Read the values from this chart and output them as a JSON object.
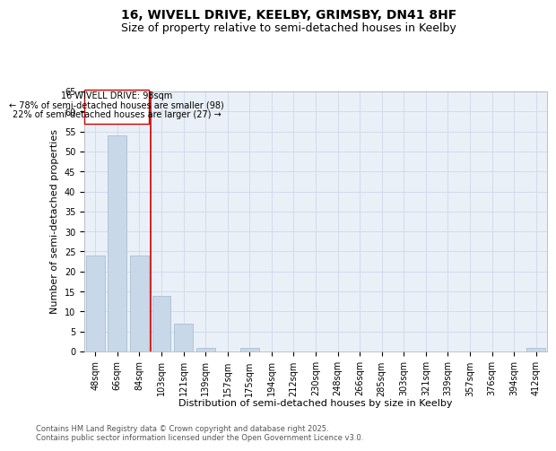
{
  "title_line1": "16, WIVELL DRIVE, KEELBY, GRIMSBY, DN41 8HF",
  "title_line2": "Size of property relative to semi-detached houses in Keelby",
  "xlabel": "Distribution of semi-detached houses by size in Keelby",
  "ylabel": "Number of semi-detached properties",
  "categories": [
    "48sqm",
    "66sqm",
    "84sqm",
    "103sqm",
    "121sqm",
    "139sqm",
    "157sqm",
    "175sqm",
    "194sqm",
    "212sqm",
    "230sqm",
    "248sqm",
    "266sqm",
    "285sqm",
    "303sqm",
    "321sqm",
    "339sqm",
    "357sqm",
    "376sqm",
    "394sqm",
    "412sqm"
  ],
  "values": [
    24,
    54,
    24,
    14,
    7,
    1,
    0,
    1,
    0,
    0,
    0,
    0,
    0,
    0,
    0,
    0,
    0,
    0,
    0,
    0,
    1
  ],
  "bar_color": "#c8d8e8",
  "bar_edge_color": "#a0b8cc",
  "vline_x": 2.5,
  "vline_color": "#cc0000",
  "annotation_title": "16 WIVELL DRIVE: 98sqm",
  "annotation_line1": "← 78% of semi-detached houses are smaller (98)",
  "annotation_line2": "22% of semi-detached houses are larger (27) →",
  "annotation_box_color": "#cc0000",
  "ylim": [
    0,
    65
  ],
  "yticks": [
    0,
    5,
    10,
    15,
    20,
    25,
    30,
    35,
    40,
    45,
    50,
    55,
    60,
    65
  ],
  "grid_color": "#d0d8e8",
  "background_color": "#eaf0f8",
  "footer_line1": "Contains HM Land Registry data © Crown copyright and database right 2025.",
  "footer_line2": "Contains public sector information licensed under the Open Government Licence v3.0.",
  "title_fontsize": 10,
  "subtitle_fontsize": 9,
  "axis_label_fontsize": 8,
  "tick_fontsize": 7,
  "annotation_fontsize": 7,
  "footer_fontsize": 6
}
